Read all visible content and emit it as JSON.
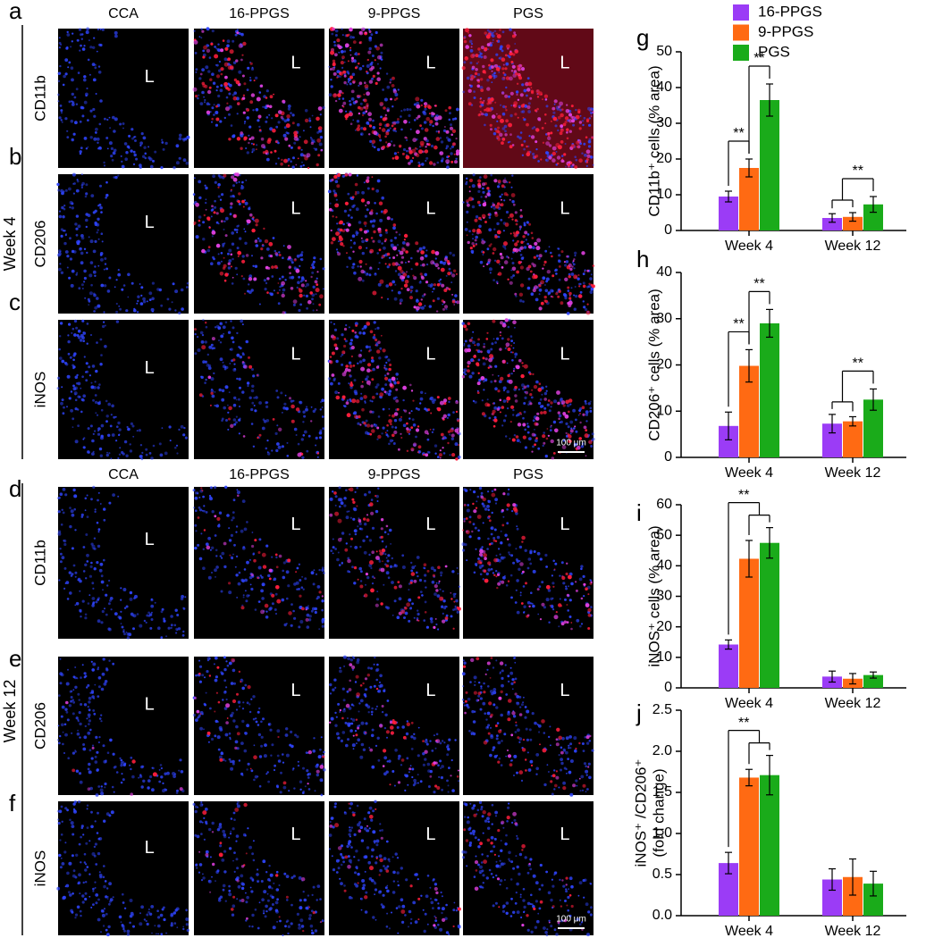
{
  "figure": {
    "blocks": [
      {
        "group": "Week 4",
        "columns": [
          "CCA",
          "16-PPGS",
          "9-PPGS",
          "PGS"
        ],
        "scale_bar": "100 μm",
        "rows": [
          {
            "letter": "a",
            "label": "CD11b",
            "lumen": [
              "L",
              "L",
              "L",
              "L"
            ]
          },
          {
            "letter": "b",
            "label": "CD206",
            "lumen": [
              "L",
              "L",
              "L",
              "L"
            ]
          },
          {
            "letter": "c",
            "label": "iNOS",
            "lumen": [
              "L",
              "L",
              "L",
              "L"
            ]
          }
        ]
      },
      {
        "group": "Week 12",
        "columns": [
          "CCA",
          "16-PPGS",
          "9-PPGS",
          "PGS"
        ],
        "scale_bar": "100 μm",
        "rows": [
          {
            "letter": "d",
            "label": "CD11b",
            "lumen": [
              "L",
              "L",
              "L",
              "L"
            ]
          },
          {
            "letter": "e",
            "label": "CD206",
            "lumen": [
              "L",
              "L",
              "L",
              "L"
            ]
          },
          {
            "letter": "f",
            "label": "iNOS",
            "lumen": [
              "L",
              "L",
              "L",
              "L"
            ]
          }
        ]
      }
    ]
  },
  "chart_data": [
    {
      "type": "bar",
      "panel": "g",
      "ylabel": "CD11b⁺ cells (% area)",
      "legend": "top",
      "categories": [
        "Week 4",
        "Week 12"
      ],
      "ylim": [
        0,
        50
      ],
      "yticks": [
        0,
        10,
        20,
        30,
        40,
        50
      ],
      "series": [
        {
          "name": "16-PPGS",
          "color": "#9b3cf6",
          "values": [
            9.5,
            3.5
          ],
          "errors": [
            1.5,
            1.2
          ]
        },
        {
          "name": "9-PPGS",
          "color": "#ff6a13",
          "values": [
            17.5,
            3.8
          ],
          "errors": [
            2.5,
            1.2
          ]
        },
        {
          "name": "PGS",
          "color": "#1aab1a",
          "values": [
            36.5,
            7.3
          ],
          "errors": [
            4.5,
            2.2
          ]
        }
      ],
      "significance": [
        {
          "label": "**",
          "category": 0,
          "groups": [
            [
              0
            ],
            [
              1
            ]
          ]
        },
        {
          "label": "**",
          "category": 0,
          "groups": [
            [
              1
            ],
            [
              2
            ]
          ]
        },
        {
          "label": "**",
          "category": 1,
          "groups": [
            [
              0,
              1
            ],
            [
              2
            ]
          ]
        }
      ]
    },
    {
      "type": "bar",
      "panel": "h",
      "ylabel": "CD206⁺ cells (% area)",
      "categories": [
        "Week 4",
        "Week 12"
      ],
      "ylim": [
        0,
        40
      ],
      "yticks": [
        0,
        10,
        20,
        30,
        40
      ],
      "series": [
        {
          "name": "16-PPGS",
          "color": "#9b3cf6",
          "values": [
            6.8,
            7.3
          ],
          "errors": [
            3.0,
            2.0
          ]
        },
        {
          "name": "9-PPGS",
          "color": "#ff6a13",
          "values": [
            19.8,
            7.8
          ],
          "errors": [
            3.5,
            1.0
          ]
        },
        {
          "name": "PGS",
          "color": "#1aab1a",
          "values": [
            29.0,
            12.5
          ],
          "errors": [
            3.0,
            2.3
          ]
        }
      ],
      "significance": [
        {
          "label": "**",
          "category": 0,
          "groups": [
            [
              0
            ],
            [
              1
            ]
          ]
        },
        {
          "label": "**",
          "category": 0,
          "groups": [
            [
              1
            ],
            [
              2
            ]
          ]
        },
        {
          "label": "**",
          "category": 1,
          "groups": [
            [
              0,
              1
            ],
            [
              2
            ]
          ]
        }
      ]
    },
    {
      "type": "bar",
      "panel": "i",
      "ylabel": "iNOS⁺ cells (% area)",
      "categories": [
        "Week 4",
        "Week 12"
      ],
      "ylim": [
        0,
        60
      ],
      "yticks": [
        0,
        10,
        20,
        30,
        40,
        50,
        60
      ],
      "series": [
        {
          "name": "16-PPGS",
          "color": "#9b3cf6",
          "values": [
            14.2,
            3.7
          ],
          "errors": [
            1.5,
            1.8
          ]
        },
        {
          "name": "9-PPGS",
          "color": "#ff6a13",
          "values": [
            42.3,
            3.0
          ],
          "errors": [
            6.0,
            1.7
          ]
        },
        {
          "name": "PGS",
          "color": "#1aab1a",
          "values": [
            47.5,
            4.2
          ],
          "errors": [
            5.0,
            1.0
          ]
        }
      ],
      "significance": [
        {
          "label": "**",
          "category": 0,
          "groups": [
            [
              0
            ],
            [
              1,
              2
            ]
          ]
        }
      ]
    },
    {
      "type": "bar",
      "panel": "j",
      "ylabel": [
        "iNOS⁺ /CD206⁺",
        "(fold change)"
      ],
      "categories": [
        "Week 4",
        "Week 12"
      ],
      "ylim": [
        0,
        2.5
      ],
      "yticks": [
        {
          "value": 0,
          "label": "0.0"
        },
        0.5,
        {
          "value": 1,
          "label": "1.0"
        },
        1.5,
        {
          "value": 2,
          "label": "2.0"
        },
        2.5
      ],
      "series": [
        {
          "name": "16-PPGS",
          "color": "#9b3cf6",
          "values": [
            0.64,
            0.44
          ],
          "errors": [
            0.13,
            0.13
          ]
        },
        {
          "name": "9-PPGS",
          "color": "#ff6a13",
          "values": [
            1.68,
            0.47
          ],
          "errors": [
            0.1,
            0.22
          ]
        },
        {
          "name": "PGS",
          "color": "#1aab1a",
          "values": [
            1.71,
            0.39
          ],
          "errors": [
            0.24,
            0.15
          ]
        }
      ],
      "significance": [
        {
          "label": "**",
          "category": 0,
          "groups": [
            [
              0
            ],
            [
              1,
              2
            ]
          ]
        }
      ]
    }
  ]
}
